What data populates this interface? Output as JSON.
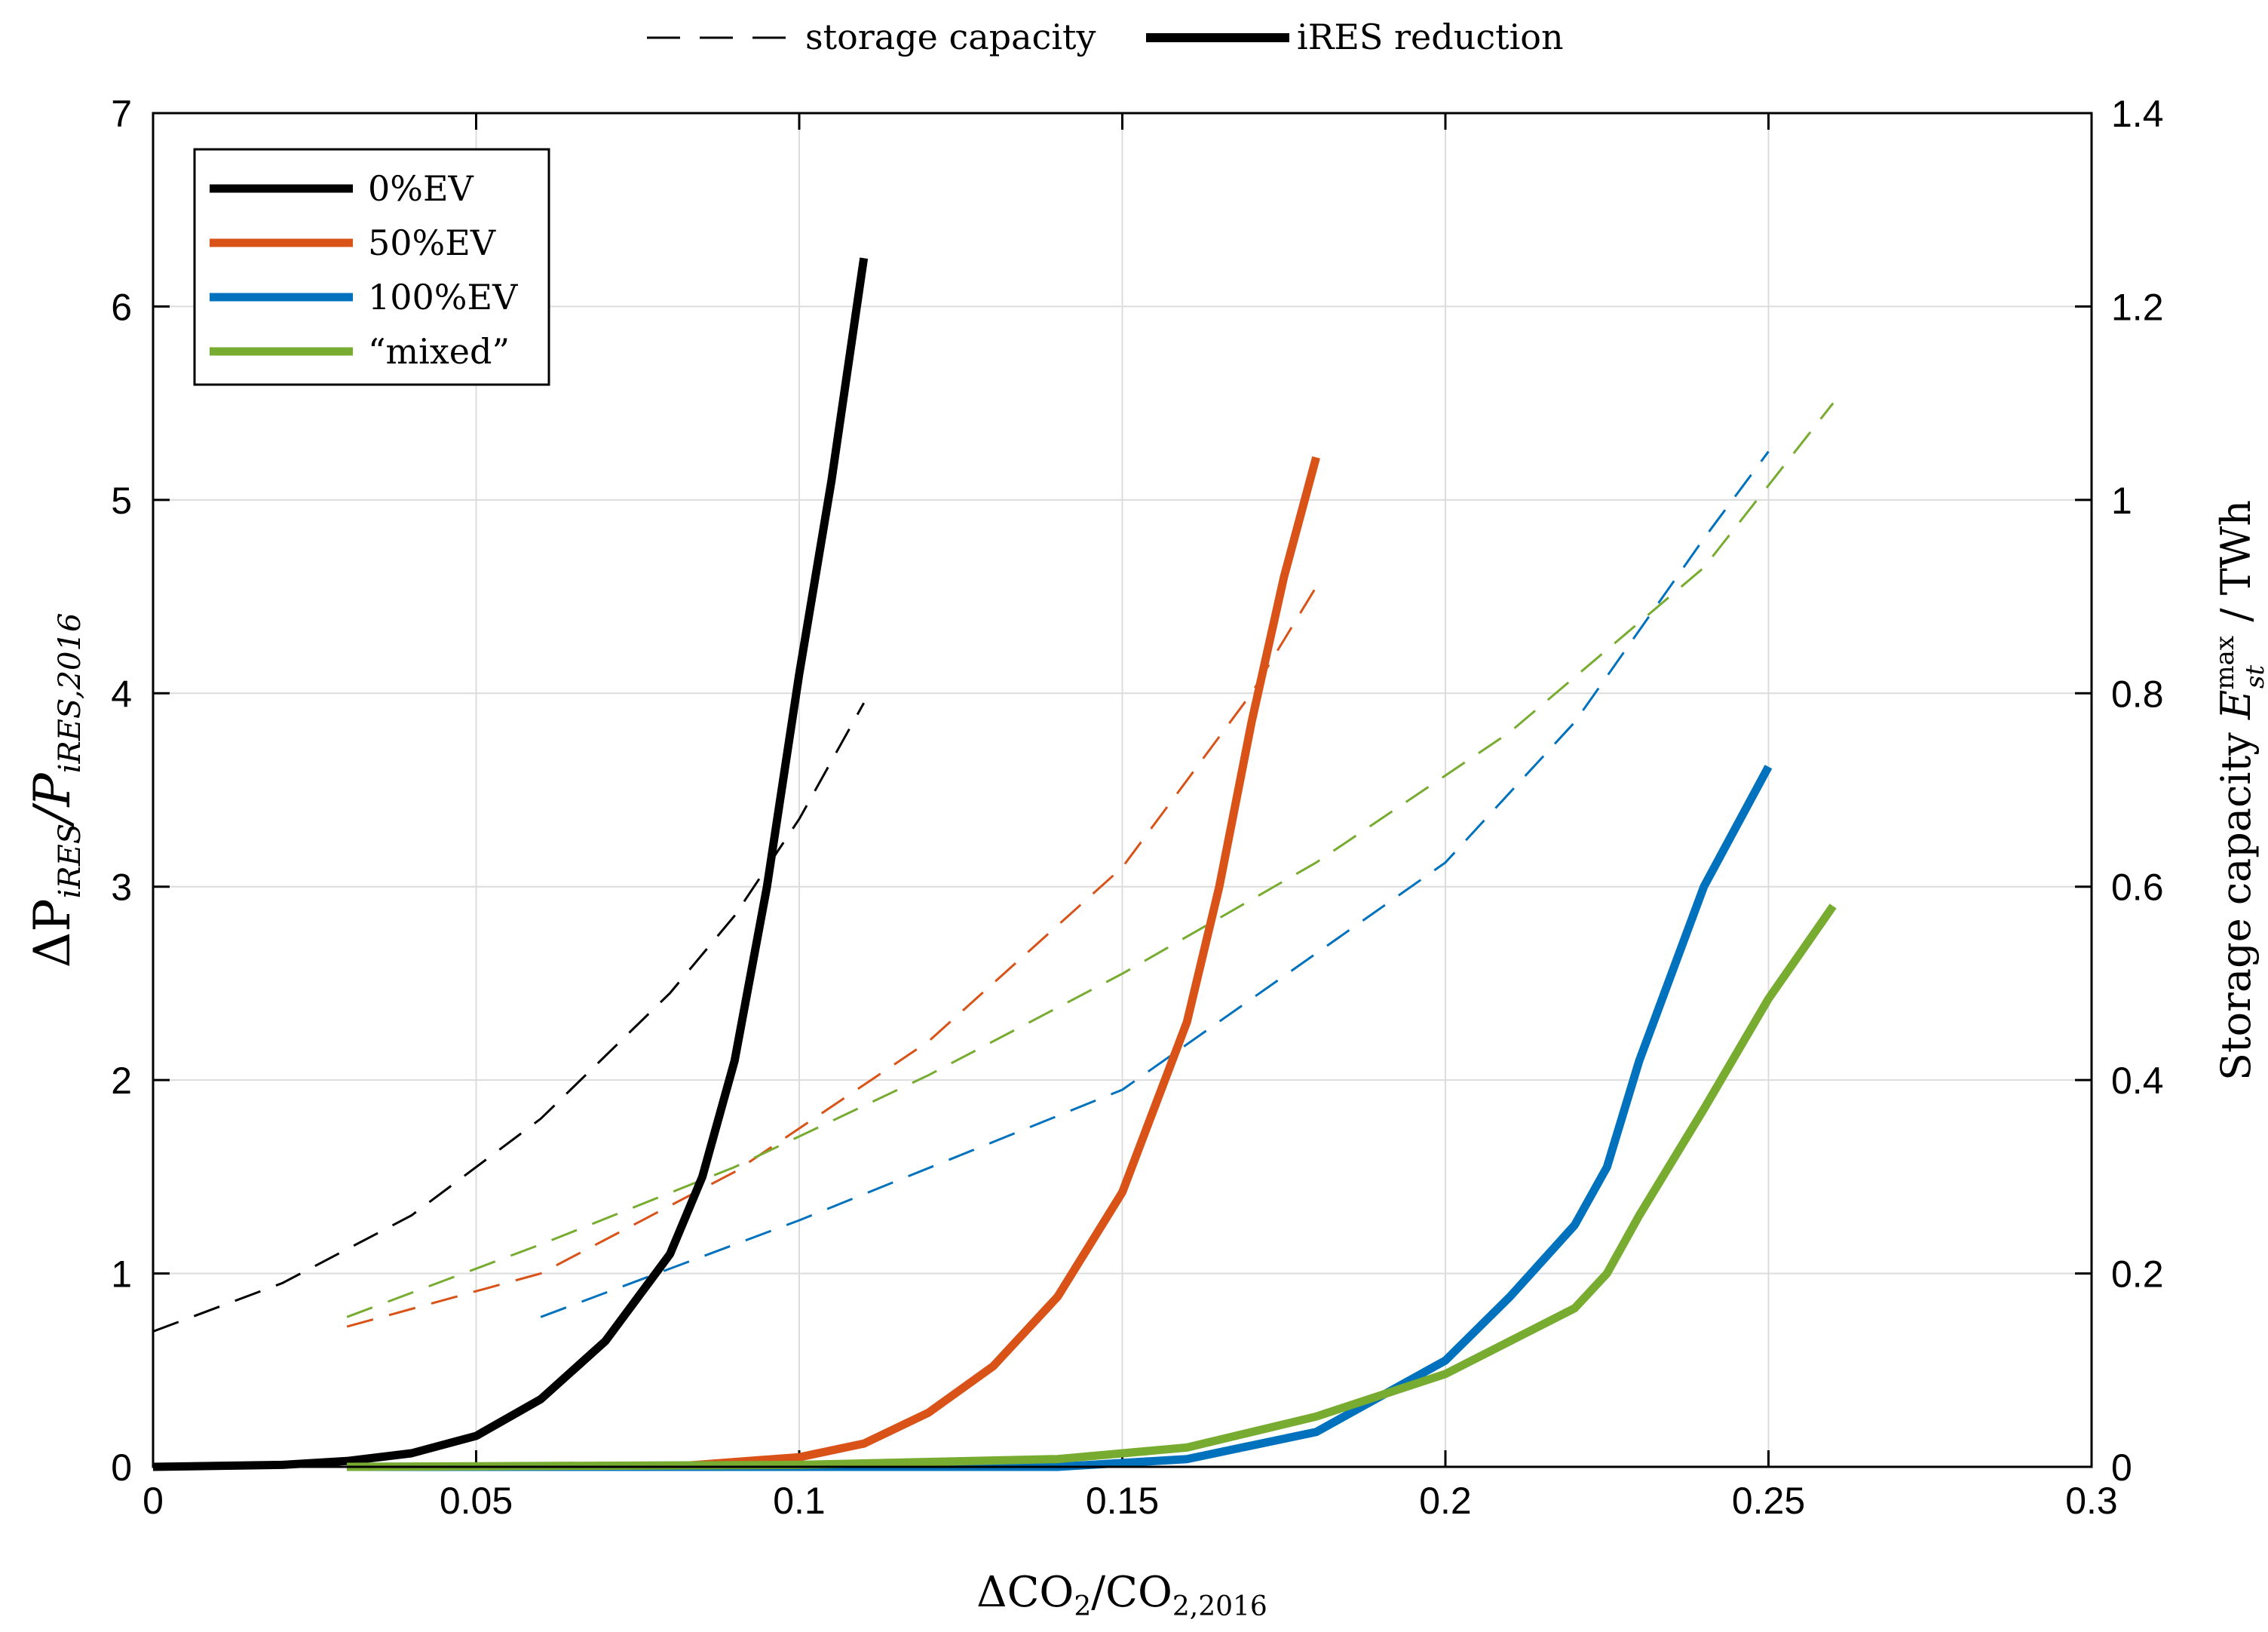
{
  "chart_data": {
    "type": "line",
    "top_legend": {
      "dashed_label": "storage capacity",
      "solid_label": "iRES reduction"
    },
    "xlabel": {
      "main": "ΔCO",
      "sub1": "2",
      "mid": "/CO",
      "sub2": "2,2016"
    },
    "ylabel_left": {
      "main": "ΔP",
      "sub1": "iRES",
      "mid": "/P",
      "sub2": "iRES,2016"
    },
    "ylabel_right": {
      "text": "Storage capacity",
      "sym": "E",
      "sup": "max",
      "sub": "st",
      "unit": "/ TWh"
    },
    "xlim": [
      0,
      0.3
    ],
    "ylim_left": [
      0,
      7
    ],
    "ylim_right": [
      0,
      1.4
    ],
    "x_ticks": [
      "0",
      "0.05",
      "0.1",
      "0.15",
      "0.2",
      "0.25",
      "0.3"
    ],
    "y_left_ticks": [
      "0",
      "1",
      "2",
      "3",
      "4",
      "5",
      "6",
      "7"
    ],
    "y_right_ticks": [
      "0",
      "0.2",
      "0.4",
      "0.6",
      "0.8",
      "1",
      "1.2",
      "1.4"
    ],
    "series": [
      {
        "name": "0%EV",
        "color": "#000000",
        "ires": {
          "x": [
            0,
            0.02,
            0.03,
            0.04,
            0.05,
            0.06,
            0.07,
            0.08,
            0.085,
            0.09,
            0.095,
            0.1,
            0.105,
            0.11
          ],
          "y": [
            0.0,
            0.01,
            0.03,
            0.07,
            0.16,
            0.35,
            0.65,
            1.1,
            1.5,
            2.1,
            3.0,
            4.1,
            5.1,
            6.25
          ]
        },
        "storage": {
          "x": [
            0,
            0.02,
            0.04,
            0.06,
            0.08,
            0.09,
            0.1,
            0.11
          ],
          "y": [
            0.14,
            0.19,
            0.26,
            0.36,
            0.49,
            0.57,
            0.67,
            0.79
          ]
        }
      },
      {
        "name": "50%EV",
        "color": "#d95319",
        "ires": {
          "x": [
            0.03,
            0.08,
            0.1,
            0.11,
            0.12,
            0.13,
            0.14,
            0.15,
            0.16,
            0.165,
            0.17,
            0.175,
            0.18
          ],
          "y": [
            0.0,
            0.0,
            0.05,
            0.12,
            0.28,
            0.52,
            0.88,
            1.42,
            2.3,
            3.0,
            3.85,
            4.6,
            5.22
          ]
        },
        "storage": {
          "x": [
            0.03,
            0.06,
            0.09,
            0.12,
            0.15,
            0.17,
            0.18
          ],
          "y": [
            0.145,
            0.2,
            0.305,
            0.44,
            0.62,
            0.8,
            0.91
          ]
        }
      },
      {
        "name": "100%EV",
        "color": "#0072bd",
        "ires": {
          "x": [
            0.03,
            0.1,
            0.14,
            0.16,
            0.18,
            0.2,
            0.21,
            0.22,
            0.225,
            0.23,
            0.24,
            0.25
          ],
          "y": [
            0.0,
            0.0,
            0.0,
            0.04,
            0.18,
            0.55,
            0.88,
            1.25,
            1.55,
            2.1,
            3.0,
            3.62
          ]
        },
        "storage": {
          "x": [
            0.06,
            0.1,
            0.15,
            0.2,
            0.22,
            0.24,
            0.25
          ],
          "y": [
            0.155,
            0.255,
            0.39,
            0.625,
            0.77,
            0.96,
            1.05
          ]
        }
      },
      {
        "name": "“mixed”",
        "color": "#77ac30",
        "ires": {
          "x": [
            0.03,
            0.1,
            0.14,
            0.16,
            0.18,
            0.2,
            0.21,
            0.22,
            0.225,
            0.23,
            0.24,
            0.25,
            0.26
          ],
          "y": [
            0.0,
            0.01,
            0.04,
            0.1,
            0.26,
            0.48,
            0.65,
            0.82,
            1.0,
            1.3,
            1.85,
            2.42,
            2.9
          ]
        },
        "storage": {
          "x": [
            0.03,
            0.06,
            0.09,
            0.12,
            0.15,
            0.18,
            0.21,
            0.24,
            0.26
          ],
          "y": [
            0.155,
            0.23,
            0.31,
            0.405,
            0.51,
            0.625,
            0.76,
            0.93,
            1.1
          ]
        }
      }
    ]
  }
}
